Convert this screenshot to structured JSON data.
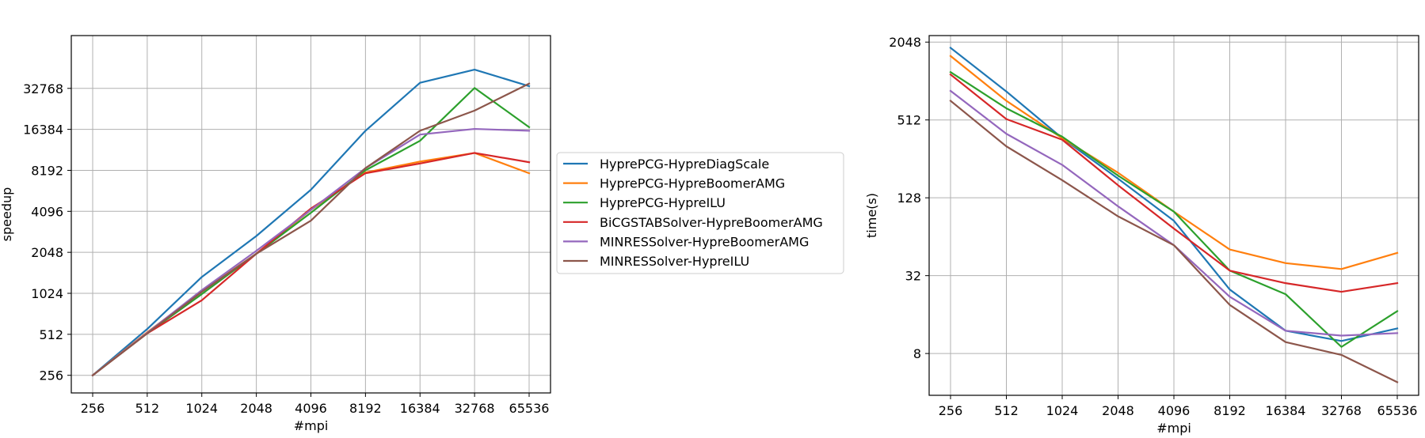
{
  "chart_data": [
    {
      "type": "line",
      "id": "speedup",
      "xlabel": "#mpi",
      "ylabel": "speedup",
      "yscale": "log2",
      "grid": true,
      "x": [
        "256",
        "512",
        "1024",
        "2048",
        "4096",
        "8192",
        "16384",
        "32768",
        "65536"
      ],
      "yticks": [
        "256",
        "512",
        "1024",
        "2048",
        "4096",
        "8192",
        "16384",
        "32768"
      ],
      "ylim": [
        190,
        80000
      ],
      "series": [
        {
          "name": "HyprePCG-HypreDiagScale",
          "color": "#1f77b4",
          "values": [
            256,
            560,
            1350,
            2700,
            5900,
            16000,
            36000,
            45000,
            34000
          ]
        },
        {
          "name": "HyprePCG-HypreBoomerAMG",
          "color": "#ff7f0e",
          "values": [
            256,
            530,
            1060,
            2000,
            4200,
            7900,
            9500,
            11000,
            7800
          ]
        },
        {
          "name": "HyprePCG-HypreILU",
          "color": "#2ca02c",
          "values": [
            256,
            520,
            1010,
            2000,
            4000,
            8200,
            13500,
            33000,
            17000
          ]
        },
        {
          "name": "BiCGSTABSolver-HypreBoomerAMG",
          "color": "#d62728",
          "values": [
            256,
            520,
            910,
            2000,
            4300,
            7800,
            9200,
            11000,
            9400
          ]
        },
        {
          "name": "MINRESSolver-HypreBoomerAMG",
          "color": "#9467bd",
          "values": [
            256,
            525,
            1080,
            2100,
            4200,
            8500,
            15000,
            16500,
            16000
          ]
        },
        {
          "name": "MINRESSolver-HypreILU",
          "color": "#8c564b",
          "values": [
            256,
            520,
            1050,
            2000,
            3500,
            8500,
            16000,
            22500,
            35500
          ]
        }
      ]
    },
    {
      "type": "line",
      "id": "time",
      "xlabel": "#mpi",
      "ylabel": "time(s)",
      "yscale": "log2",
      "grid": true,
      "x": [
        "256",
        "512",
        "1024",
        "2048",
        "4096",
        "8192",
        "16384",
        "32768",
        "65536"
      ],
      "yticks": [
        "8",
        "32",
        "128",
        "512",
        "2048"
      ],
      "ylim": [
        3.8,
        2300
      ],
      "series": [
        {
          "name": "HyprePCG-HypreDiagScale",
          "color": "#1f77b4",
          "values": [
            1850,
            850,
            370,
            180,
            85,
            25,
            12,
            10,
            12.5
          ]
        },
        {
          "name": "HyprePCG-HypreBoomerAMG",
          "color": "#ff7f0e",
          "values": [
            1600,
            720,
            370,
            200,
            100,
            51,
            40,
            36,
            48
          ]
        },
        {
          "name": "HyprePCG-HypreILU",
          "color": "#2ca02c",
          "values": [
            1200,
            630,
            380,
            190,
            100,
            35,
            23,
            9,
            17
          ]
        },
        {
          "name": "BiCGSTABSolver-HypreBoomerAMG",
          "color": "#d62728",
          "values": [
            1150,
            520,
            360,
            160,
            74,
            35,
            28,
            24,
            28
          ]
        },
        {
          "name": "MINRESSolver-HypreBoomerAMG",
          "color": "#9467bd",
          "values": [
            860,
            400,
            230,
            110,
            55,
            22,
            12,
            11,
            11.5
          ]
        },
        {
          "name": "MINRESSolver-HypreILU",
          "color": "#8c564b",
          "values": [
            720,
            320,
            175,
            92,
            55,
            19,
            9.8,
            7.8,
            4.8
          ]
        }
      ]
    }
  ],
  "legend": {
    "placement": "center, between charts",
    "entries": [
      {
        "label": "HyprePCG-HypreDiagScale",
        "color": "#1f77b4"
      },
      {
        "label": "HyprePCG-HypreBoomerAMG",
        "color": "#ff7f0e"
      },
      {
        "label": "HyprePCG-HypreILU",
        "color": "#2ca02c"
      },
      {
        "label": "BiCGSTABSolver-HypreBoomerAMG",
        "color": "#d62728"
      },
      {
        "label": "MINRESSolver-HypreBoomerAMG",
        "color": "#9467bd"
      },
      {
        "label": "MINRESSolver-HypreILU",
        "color": "#8c564b"
      }
    ]
  }
}
